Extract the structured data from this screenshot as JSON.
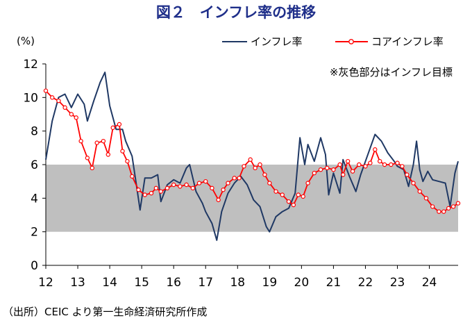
{
  "chart_data": {
    "type": "line",
    "title": "図２　インフレ率の推移",
    "ylabel": "(%)",
    "ylim": [
      0,
      12
    ],
    "yticks": [
      0,
      2,
      4,
      6,
      8,
      10,
      12
    ],
    "xlim": [
      12,
      24.9
    ],
    "xticks": [
      12,
      13,
      14,
      15,
      16,
      17,
      18,
      19,
      20,
      21,
      22,
      23,
      24
    ],
    "xtick_labels": [
      "12",
      "13",
      "14",
      "15",
      "16",
      "17",
      "18",
      "19",
      "20",
      "21",
      "22",
      "23",
      "24"
    ],
    "target_band": {
      "from": 2,
      "to": 6,
      "color": "#bfbfbf"
    },
    "note": "※灰色部分はインフレ目標",
    "legend_position": "top-right",
    "source": "（出所）CEIC より第一生命経済研究所作成",
    "series": [
      {
        "name": "インフレ率",
        "color": "#1f3864",
        "style": "line",
        "points": [
          [
            12.0,
            6.3
          ],
          [
            12.2,
            8.6
          ],
          [
            12.4,
            10.0
          ],
          [
            12.6,
            10.2
          ],
          [
            12.8,
            9.4
          ],
          [
            13.0,
            10.2
          ],
          [
            13.2,
            9.6
          ],
          [
            13.3,
            8.6
          ],
          [
            13.5,
            9.8
          ],
          [
            13.7,
            10.9
          ],
          [
            13.85,
            11.5
          ],
          [
            14.0,
            9.5
          ],
          [
            14.2,
            8.1
          ],
          [
            14.4,
            8.1
          ],
          [
            14.5,
            7.4
          ],
          [
            14.7,
            6.5
          ],
          [
            14.85,
            4.6
          ],
          [
            14.95,
            3.3
          ],
          [
            15.1,
            5.2
          ],
          [
            15.3,
            5.2
          ],
          [
            15.5,
            5.4
          ],
          [
            15.6,
            3.8
          ],
          [
            15.8,
            4.8
          ],
          [
            16.0,
            5.1
          ],
          [
            16.2,
            4.9
          ],
          [
            16.4,
            5.8
          ],
          [
            16.5,
            6.0
          ],
          [
            16.7,
            4.4
          ],
          [
            16.9,
            3.7
          ],
          [
            17.0,
            3.2
          ],
          [
            17.2,
            2.5
          ],
          [
            17.35,
            1.5
          ],
          [
            17.5,
            3.2
          ],
          [
            17.7,
            4.3
          ],
          [
            17.9,
            4.9
          ],
          [
            18.1,
            5.3
          ],
          [
            18.3,
            4.8
          ],
          [
            18.5,
            3.9
          ],
          [
            18.7,
            3.5
          ],
          [
            18.9,
            2.3
          ],
          [
            19.0,
            2.0
          ],
          [
            19.2,
            2.9
          ],
          [
            19.4,
            3.2
          ],
          [
            19.6,
            3.4
          ],
          [
            19.8,
            4.3
          ],
          [
            19.95,
            7.6
          ],
          [
            20.1,
            6.0
          ],
          [
            20.2,
            7.2
          ],
          [
            20.4,
            6.2
          ],
          [
            20.6,
            7.6
          ],
          [
            20.75,
            6.6
          ],
          [
            20.85,
            4.2
          ],
          [
            21.0,
            5.5
          ],
          [
            21.2,
            4.3
          ],
          [
            21.3,
            6.3
          ],
          [
            21.5,
            5.3
          ],
          [
            21.7,
            4.4
          ],
          [
            21.85,
            5.4
          ],
          [
            22.0,
            6.2
          ],
          [
            22.15,
            7.0
          ],
          [
            22.3,
            7.8
          ],
          [
            22.5,
            7.4
          ],
          [
            22.7,
            6.7
          ],
          [
            22.9,
            6.2
          ],
          [
            23.0,
            5.9
          ],
          [
            23.2,
            5.7
          ],
          [
            23.35,
            4.7
          ],
          [
            23.5,
            6.0
          ],
          [
            23.6,
            7.4
          ],
          [
            23.7,
            5.7
          ],
          [
            23.8,
            5.0
          ],
          [
            23.95,
            5.6
          ],
          [
            24.1,
            5.1
          ],
          [
            24.3,
            5.0
          ],
          [
            24.5,
            4.9
          ],
          [
            24.65,
            3.5
          ],
          [
            24.8,
            5.5
          ],
          [
            24.9,
            6.2
          ]
        ]
      },
      {
        "name": "コアインフレ率",
        "color": "#ff0000",
        "style": "line-marker",
        "points": [
          [
            12.0,
            10.4
          ],
          [
            12.2,
            10.0
          ],
          [
            12.4,
            9.8
          ],
          [
            12.6,
            9.4
          ],
          [
            12.8,
            9.0
          ],
          [
            12.95,
            8.8
          ],
          [
            13.1,
            7.4
          ],
          [
            13.3,
            6.4
          ],
          [
            13.45,
            5.8
          ],
          [
            13.6,
            7.3
          ],
          [
            13.8,
            7.4
          ],
          [
            13.95,
            6.6
          ],
          [
            14.1,
            8.2
          ],
          [
            14.3,
            8.4
          ],
          [
            14.4,
            6.8
          ],
          [
            14.55,
            6.2
          ],
          [
            14.7,
            5.3
          ],
          [
            14.9,
            4.5
          ],
          [
            15.1,
            4.2
          ],
          [
            15.3,
            4.3
          ],
          [
            15.45,
            4.6
          ],
          [
            15.6,
            4.4
          ],
          [
            15.8,
            4.6
          ],
          [
            16.0,
            4.8
          ],
          [
            16.2,
            4.7
          ],
          [
            16.4,
            4.8
          ],
          [
            16.6,
            4.6
          ],
          [
            16.8,
            4.9
          ],
          [
            17.0,
            5.0
          ],
          [
            17.2,
            4.6
          ],
          [
            17.4,
            3.9
          ],
          [
            17.55,
            4.5
          ],
          [
            17.7,
            4.9
          ],
          [
            17.9,
            5.2
          ],
          [
            18.05,
            5.2
          ],
          [
            18.2,
            5.9
          ],
          [
            18.4,
            6.3
          ],
          [
            18.55,
            5.8
          ],
          [
            18.7,
            6.0
          ],
          [
            18.85,
            5.4
          ],
          [
            19.0,
            4.9
          ],
          [
            19.2,
            4.4
          ],
          [
            19.4,
            4.2
          ],
          [
            19.6,
            3.8
          ],
          [
            19.75,
            3.6
          ],
          [
            19.9,
            4.2
          ],
          [
            20.05,
            4.1
          ],
          [
            20.2,
            4.9
          ],
          [
            20.4,
            5.5
          ],
          [
            20.6,
            5.7
          ],
          [
            20.8,
            5.8
          ],
          [
            21.0,
            5.7
          ],
          [
            21.2,
            6.0
          ],
          [
            21.3,
            5.4
          ],
          [
            21.45,
            6.2
          ],
          [
            21.6,
            5.6
          ],
          [
            21.8,
            6.0
          ],
          [
            22.0,
            5.9
          ],
          [
            22.15,
            6.1
          ],
          [
            22.3,
            6.9
          ],
          [
            22.45,
            6.2
          ],
          [
            22.6,
            6.0
          ],
          [
            22.8,
            6.0
          ],
          [
            23.0,
            6.1
          ],
          [
            23.15,
            5.9
          ],
          [
            23.3,
            5.4
          ],
          [
            23.5,
            4.9
          ],
          [
            23.7,
            4.4
          ],
          [
            23.9,
            4.0
          ],
          [
            24.1,
            3.5
          ],
          [
            24.3,
            3.2
          ],
          [
            24.45,
            3.2
          ],
          [
            24.6,
            3.4
          ],
          [
            24.75,
            3.5
          ],
          [
            24.9,
            3.7
          ]
        ]
      }
    ]
  }
}
